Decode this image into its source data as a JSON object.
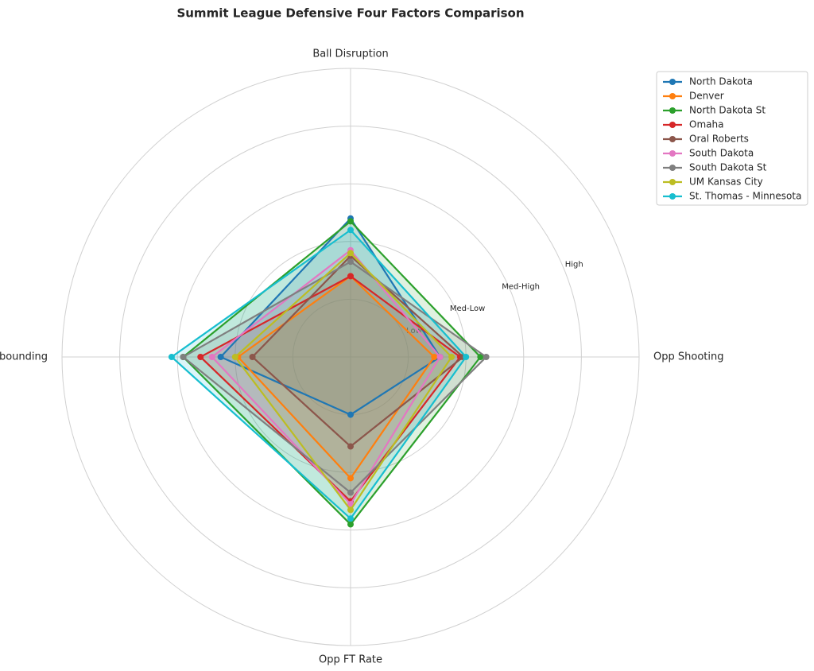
{
  "chart_data": {
    "type": "radar",
    "title": "Summit League Defensive Four Factors Comparison",
    "categories": [
      "Ball Disruption",
      "Opp Shooting",
      "Opp FT Rate",
      "Def Rebounding"
    ],
    "ylim": [
      0,
      1
    ],
    "yticks": [
      {
        "value": 0.2,
        "label": "Low"
      },
      {
        "value": 0.4,
        "label": "Med-Low"
      },
      {
        "value": 0.6,
        "label": "Med-High"
      },
      {
        "value": 0.8,
        "label": "High"
      }
    ],
    "grid": true,
    "legend": "upper right",
    "series": [
      {
        "name": "North Dakota",
        "color": "#1f77b4",
        "values": [
          0.48,
          0.31,
          0.2,
          0.45
        ]
      },
      {
        "name": "Denver",
        "color": "#ff7f0e",
        "values": [
          0.28,
          0.29,
          0.42,
          0.39
        ]
      },
      {
        "name": "North Dakota St",
        "color": "#2ca02c",
        "values": [
          0.47,
          0.45,
          0.58,
          0.58
        ]
      },
      {
        "name": "Omaha",
        "color": "#d62728",
        "values": [
          0.28,
          0.38,
          0.5,
          0.52
        ]
      },
      {
        "name": "Oral Roberts",
        "color": "#8c564b",
        "values": [
          0.35,
          0.39,
          0.31,
          0.34
        ]
      },
      {
        "name": "South Dakota",
        "color": "#e377c2",
        "values": [
          0.37,
          0.31,
          0.51,
          0.48
        ]
      },
      {
        "name": "South Dakota St",
        "color": "#7f7f7f",
        "values": [
          0.33,
          0.47,
          0.47,
          0.58
        ]
      },
      {
        "name": "UM Kansas City",
        "color": "#bcbd22",
        "values": [
          0.36,
          0.35,
          0.53,
          0.4
        ]
      },
      {
        "name": "St. Thomas - Minnesota",
        "color": "#17becf",
        "values": [
          0.44,
          0.4,
          0.56,
          0.62
        ]
      }
    ]
  }
}
